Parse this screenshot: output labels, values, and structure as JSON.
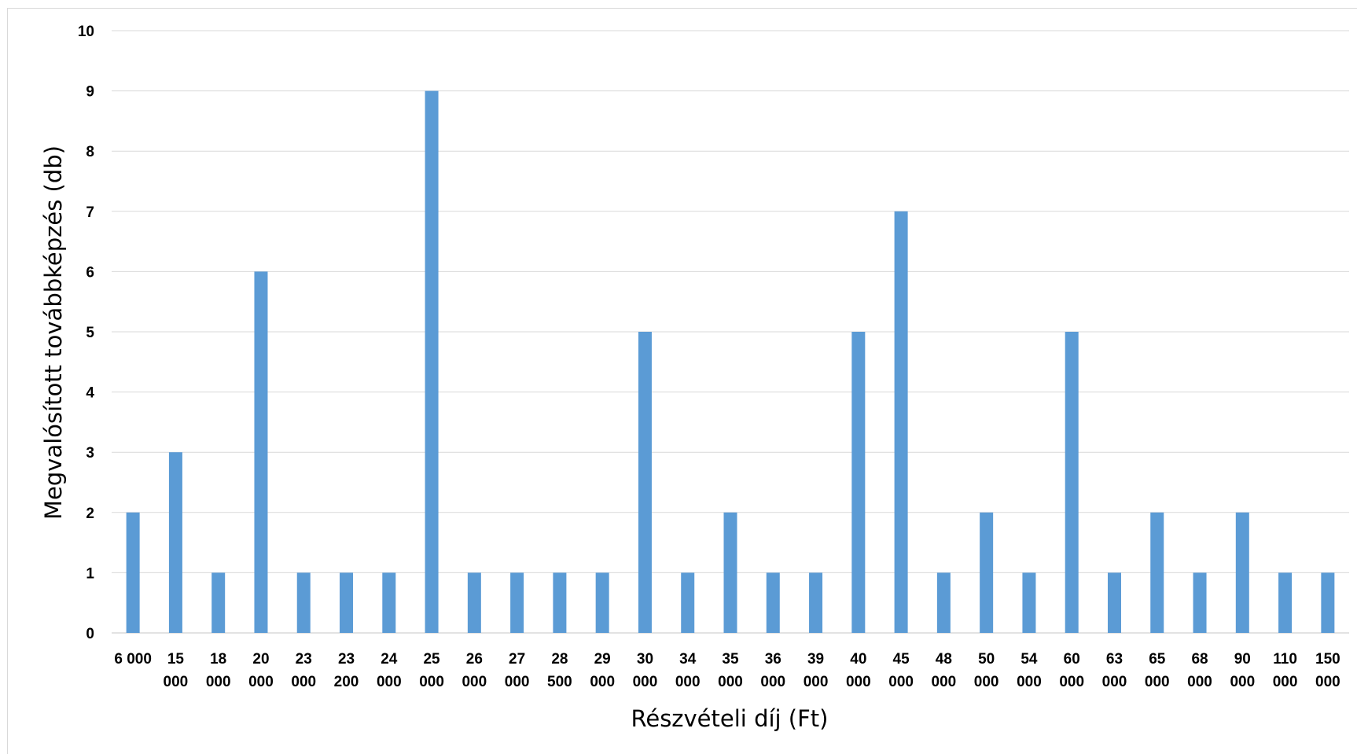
{
  "chart_data": {
    "type": "bar",
    "title": "",
    "xlabel": "Részvételi díj (Ft)",
    "ylabel": "Megvalósított továbbképzés (db)",
    "ylim": [
      0,
      10
    ],
    "yticks": [
      "0",
      "1",
      "2",
      "3",
      "4",
      "5",
      "6",
      "7",
      "8",
      "9",
      "10"
    ],
    "grid": true,
    "legend": "none",
    "bar_color": "#5b9bd5",
    "categories": [
      [
        "6 000"
      ],
      [
        "15",
        "000"
      ],
      [
        "18",
        "000"
      ],
      [
        "20",
        "000"
      ],
      [
        "23",
        "000"
      ],
      [
        "23",
        "200"
      ],
      [
        "24",
        "000"
      ],
      [
        "25",
        "000"
      ],
      [
        "26",
        "000"
      ],
      [
        "27",
        "000"
      ],
      [
        "28",
        "500"
      ],
      [
        "29",
        "000"
      ],
      [
        "30",
        "000"
      ],
      [
        "34",
        "000"
      ],
      [
        "35",
        "000"
      ],
      [
        "36",
        "000"
      ],
      [
        "39",
        "000"
      ],
      [
        "40",
        "000"
      ],
      [
        "45",
        "000"
      ],
      [
        "48",
        "000"
      ],
      [
        "50",
        "000"
      ],
      [
        "54",
        "000"
      ],
      [
        "60",
        "000"
      ],
      [
        "63",
        "000"
      ],
      [
        "65",
        "000"
      ],
      [
        "68",
        "000"
      ],
      [
        "90",
        "000"
      ],
      [
        "110",
        "000"
      ],
      [
        "150",
        "000"
      ]
    ],
    "values": [
      2,
      3,
      1,
      6,
      1,
      1,
      1,
      9,
      1,
      1,
      1,
      1,
      5,
      1,
      2,
      1,
      1,
      5,
      7,
      1,
      2,
      1,
      5,
      1,
      2,
      1,
      2,
      1,
      1
    ]
  }
}
